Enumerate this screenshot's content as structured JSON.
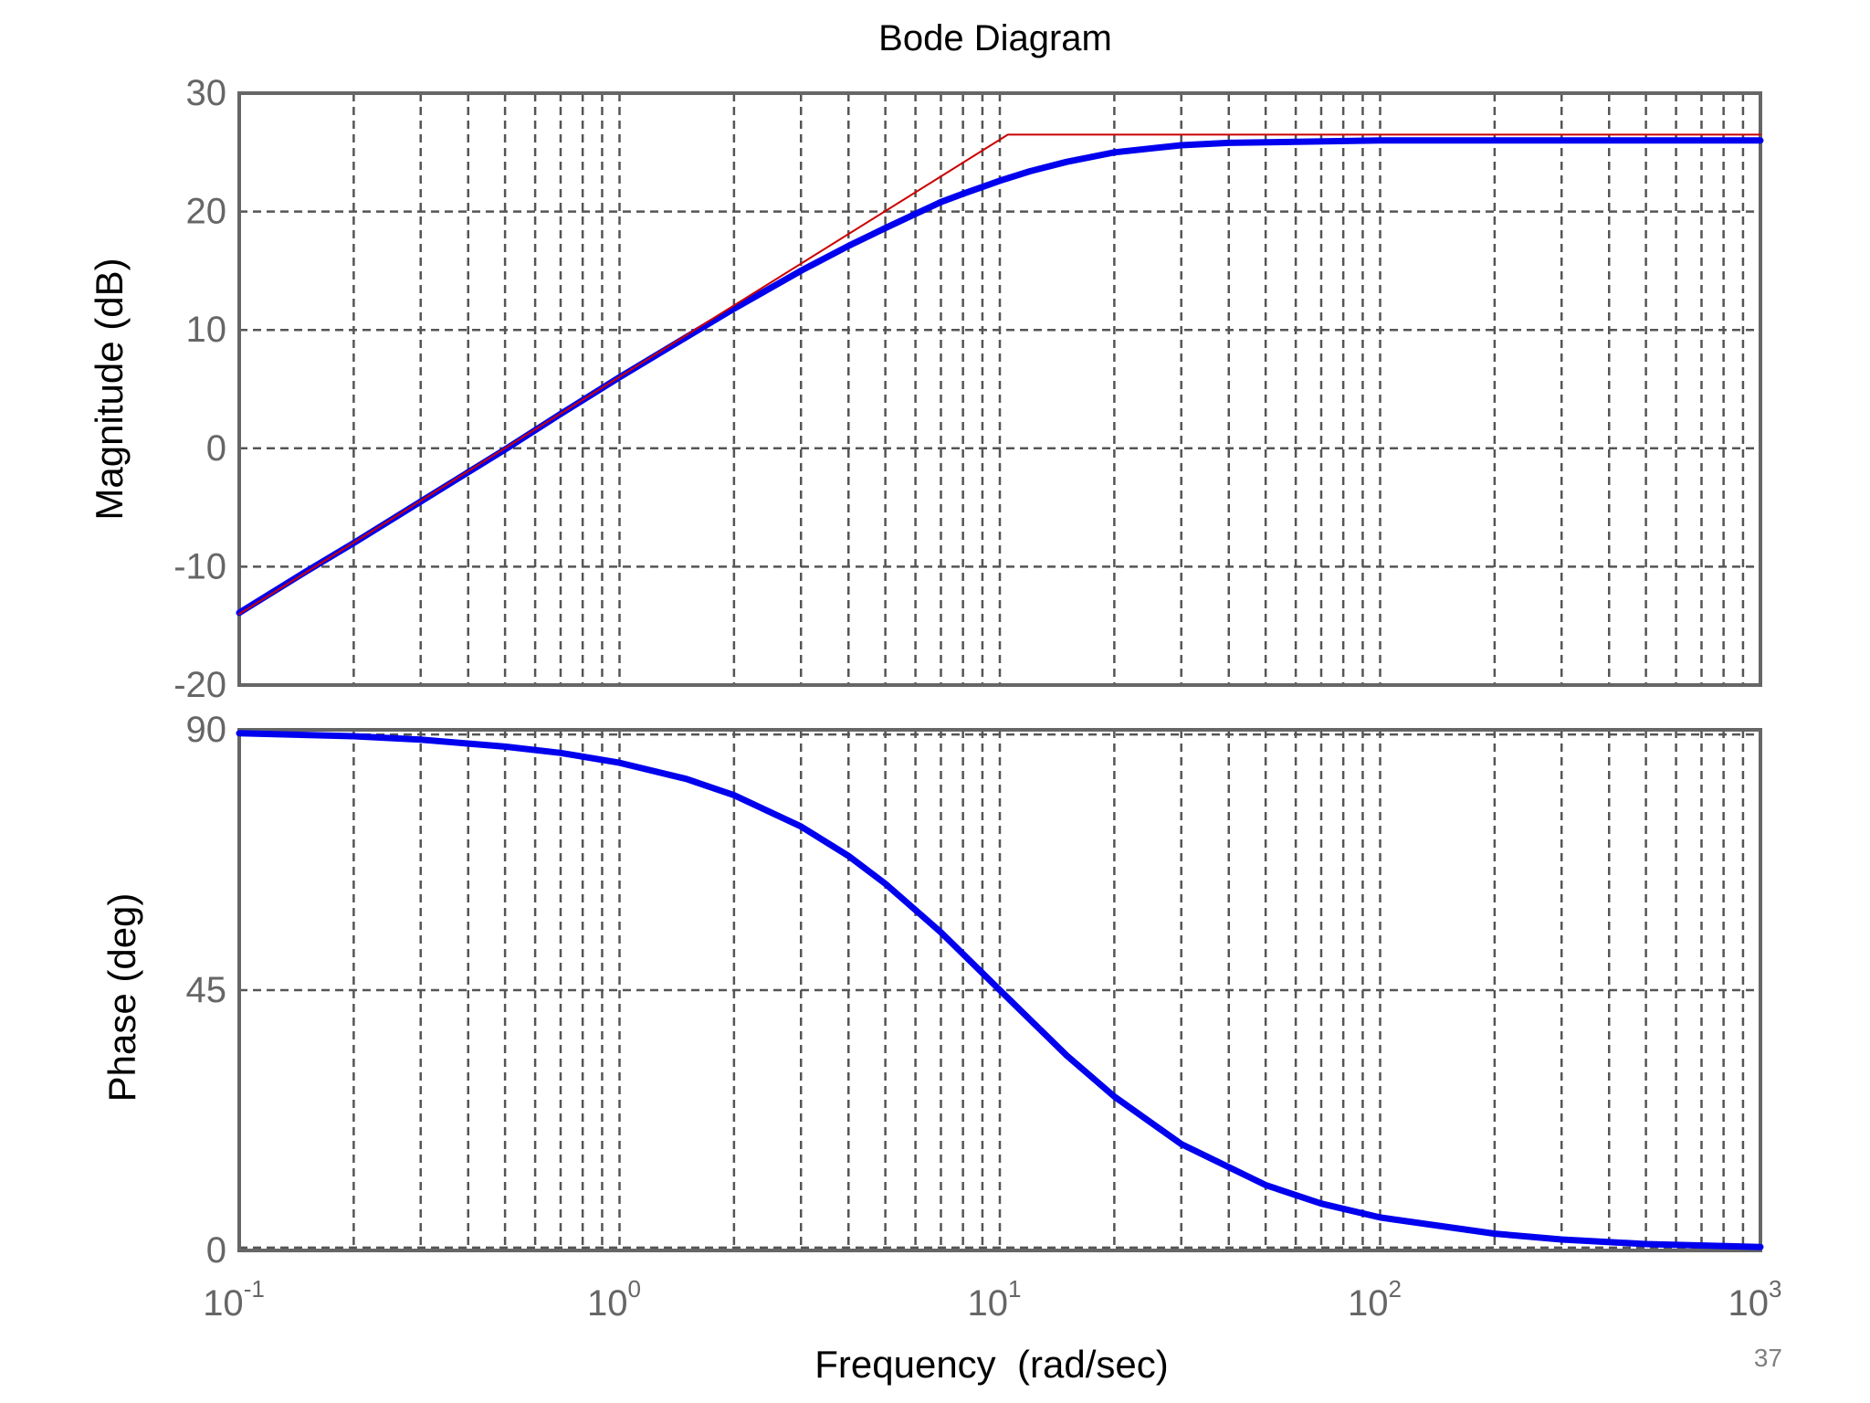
{
  "chart_data": [
    {
      "type": "line",
      "title": "Bode Diagram",
      "xlabel": "",
      "ylabel": "Magnitude (dB)",
      "x_scale": "log",
      "xlim": [
        0.1,
        1000
      ],
      "ylim": [
        -20,
        30
      ],
      "y_ticks": [
        -20,
        -10,
        0,
        10,
        20,
        30
      ],
      "grid": true,
      "series": [
        {
          "color": "#0000ee",
          "x": [
            0.1,
            0.15,
            0.2,
            0.3,
            0.5,
            0.7,
            1,
            1.5,
            2,
            3,
            4,
            5,
            6,
            7,
            8,
            10,
            12,
            15,
            20,
            30,
            40,
            100,
            1000
          ],
          "y": [
            -13.9,
            -10.4,
            -8.0,
            -4.5,
            -0.1,
            2.9,
            6.0,
            9.4,
            11.8,
            15.0,
            17.1,
            18.6,
            19.8,
            20.8,
            21.5,
            22.6,
            23.4,
            24.2,
            25.0,
            25.6,
            25.8,
            26.0,
            26.0
          ]
        },
        {
          "color": "#cc0000",
          "x": [
            0.1,
            10.5,
            1000
          ],
          "y": [
            -14,
            26.5,
            26.5
          ]
        }
      ]
    },
    {
      "type": "line",
      "title": "",
      "xlabel": "Frequency  (rad/sec)",
      "ylabel": "Phase (deg)",
      "x_scale": "log",
      "xlim": [
        0.1,
        1000
      ],
      "ylim": [
        0,
        90
      ],
      "y_ticks": [
        0,
        45,
        90
      ],
      "x_ticks": [
        {
          "base": "10",
          "exp": "-1"
        },
        {
          "base": "10",
          "exp": "0"
        },
        {
          "base": "10",
          "exp": "1"
        },
        {
          "base": "10",
          "exp": "2"
        },
        {
          "base": "10",
          "exp": "3"
        }
      ],
      "grid": true,
      "series": [
        {
          "color": "#0000ee",
          "x": [
            0.1,
            0.2,
            0.3,
            0.5,
            0.7,
            1,
            1.5,
            2,
            3,
            4,
            5,
            7,
            10,
            15,
            20,
            30,
            50,
            70,
            100,
            200,
            300,
            500,
            1000
          ],
          "y": [
            89.4,
            88.9,
            88.3,
            87.1,
            86.0,
            84.3,
            81.5,
            78.7,
            73.3,
            68.2,
            63.4,
            55.0,
            45.0,
            33.7,
            26.6,
            18.4,
            11.3,
            8.1,
            5.7,
            2.9,
            1.9,
            1.1,
            0.6
          ]
        }
      ]
    }
  ],
  "page_number": "37"
}
